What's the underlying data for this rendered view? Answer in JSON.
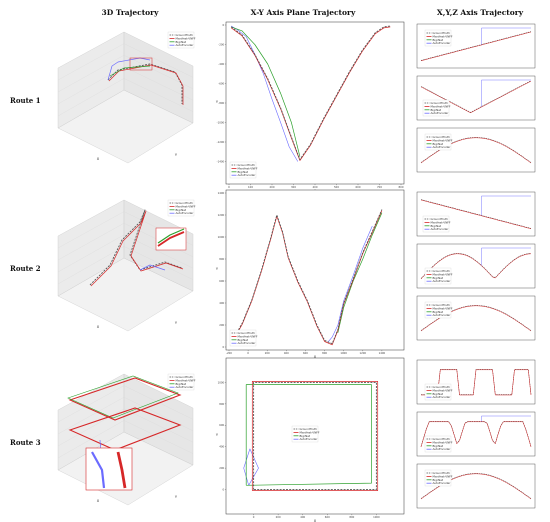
{
  "columns": {
    "c1": "3D Trajectory",
    "c2": "X-Y Axis Plane Trajectory",
    "c3": "X,Y,Z Axis Trajectory"
  },
  "rows": [
    "Route 1",
    "Route 2",
    "Route 3"
  ],
  "legend": [
    "GroundTruth",
    "Manifest-VNFF",
    "BigrNet",
    "AutoEncoder"
  ],
  "colors": {
    "GroundTruth": "#555555",
    "Manifest-VNFF": "#d62728",
    "BigrNet": "#2ca02c",
    "AutoEncoder": "#6b6bff"
  },
  "axis_labels": {
    "x": "X",
    "y": "Y"
  },
  "chart_data": [
    {
      "type": "line",
      "title": "X-Y Axis Plane Trajectory",
      "route": "Route 1",
      "xlim": [
        0,
        800
      ],
      "ylim": [
        -1600,
        0
      ],
      "x_ticks": [
        0,
        100,
        200,
        300,
        400,
        500,
        600,
        700,
        800
      ],
      "y_ticks": [
        0,
        -200,
        -400,
        -600,
        -800,
        -1000,
        -1200,
        -1400
      ],
      "series": [
        {
          "name": "GroundTruth",
          "x": [
            10,
            60,
            120,
            180,
            240,
            290,
            330,
            380,
            440,
            500,
            560,
            620,
            680,
            720,
            750
          ],
          "y": [
            -20,
            -100,
            -300,
            -550,
            -850,
            -1150,
            -1380,
            -1220,
            -960,
            -720,
            -480,
            -260,
            -80,
            -20,
            -10
          ]
        },
        {
          "name": "Manifest-VNFF",
          "x": [
            10,
            60,
            120,
            180,
            240,
            290,
            330,
            380,
            440,
            500,
            560,
            620,
            680,
            720,
            750
          ],
          "y": [
            -30,
            -110,
            -310,
            -560,
            -860,
            -1160,
            -1390,
            -1230,
            -970,
            -730,
            -490,
            -270,
            -90,
            -30,
            -20
          ]
        },
        {
          "name": "BigrNet",
          "x": [
            10,
            60,
            120,
            180,
            240,
            290,
            330
          ],
          "y": [
            -20,
            -60,
            -200,
            -400,
            -700,
            -1000,
            -1350
          ]
        },
        {
          "name": "AutoEncoder",
          "x": [
            10,
            40,
            80,
            120,
            160,
            200,
            240,
            280,
            320
          ],
          "y": [
            -10,
            -50,
            -120,
            -300,
            -500,
            -760,
            -1000,
            -1250,
            -1400
          ]
        }
      ]
    },
    {
      "type": "line",
      "title": "X-Y Axis Plane Trajectory",
      "route": "Route 2",
      "xlim": [
        -200,
        1600
      ],
      "ylim": [
        0,
        1400
      ],
      "x_ticks": [
        -200,
        0,
        200,
        400,
        600,
        800,
        1000,
        1200,
        1400
      ],
      "y_ticks": [
        0,
        200,
        400,
        600,
        800,
        1000,
        1200,
        1400
      ],
      "series": [
        {
          "name": "GroundTruth",
          "x": [
            -150,
            -60,
            40,
            140,
            240,
            300,
            360,
            420,
            520,
            620,
            720,
            800,
            880,
            940,
            1000,
            1100,
            1200,
            1300,
            1400
          ],
          "y": [
            80,
            220,
            430,
            700,
            1000,
            1200,
            1050,
            820,
            600,
            420,
            200,
            60,
            30,
            160,
            400,
            620,
            860,
            1050,
            1250
          ]
        },
        {
          "name": "Manifest-VNFF",
          "x": [
            -150,
            -60,
            40,
            140,
            240,
            300,
            360,
            420,
            520,
            620,
            720,
            800,
            880,
            940,
            1000,
            1100,
            1200,
            1300,
            1400
          ],
          "y": [
            70,
            210,
            420,
            690,
            990,
            1190,
            1040,
            810,
            590,
            410,
            190,
            50,
            20,
            150,
            390,
            610,
            850,
            1040,
            1240
          ]
        },
        {
          "name": "BigrNet",
          "x": [
            940,
            1000,
            1100,
            1200,
            1300,
            1400
          ],
          "y": [
            130,
            360,
            600,
            800,
            1020,
            1220
          ]
        },
        {
          "name": "AutoEncoder",
          "x": [
            840,
            880,
            940,
            1000,
            1100,
            1200,
            1300
          ],
          "y": [
            50,
            90,
            200,
            420,
            650,
            900,
            1100
          ]
        }
      ]
    },
    {
      "type": "line",
      "title": "X-Y Axis Plane Trajectory",
      "route": "Route 3",
      "xlim": [
        -200,
        1200
      ],
      "ylim": [
        -200,
        1200
      ],
      "x_ticks": [
        0,
        200,
        400,
        600,
        800,
        1000
      ],
      "y_ticks": [
        0,
        200,
        400,
        600,
        800,
        1000
      ],
      "series": [
        {
          "name": "GroundTruth",
          "x": [
            0,
            0,
            1000,
            1000,
            0
          ],
          "y": [
            0,
            1000,
            1000,
            0,
            0
          ]
        },
        {
          "name": "Manifest-VNFF",
          "x": [
            -10,
            -10,
            1010,
            1010,
            -10
          ],
          "y": [
            -10,
            1010,
            1010,
            -10,
            -10
          ]
        },
        {
          "name": "BigrNet",
          "x": [
            -60,
            -60,
            960,
            960,
            -60
          ],
          "y": [
            40,
            980,
            980,
            60,
            40
          ]
        },
        {
          "name": "AutoEncoder",
          "x": [
            -40,
            -80,
            -30,
            40,
            -40
          ],
          "y": [
            40,
            200,
            380,
            200,
            40
          ]
        }
      ]
    }
  ]
}
